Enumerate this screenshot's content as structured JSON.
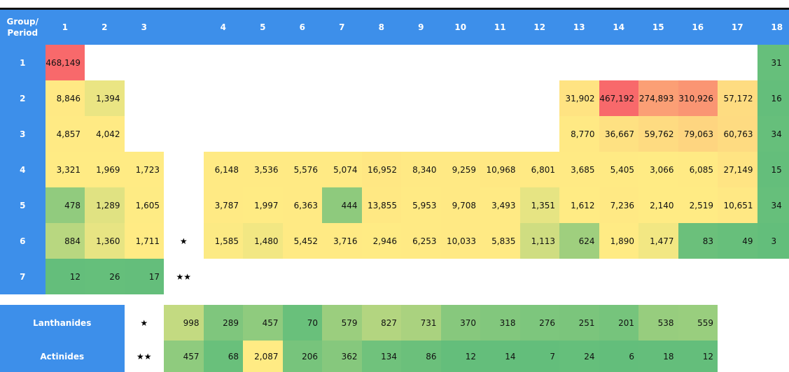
{
  "header": {
    "corner": [
      "Group/",
      "Period"
    ],
    "columns": [
      "1",
      "2",
      "3",
      null,
      "4",
      "5",
      "6",
      "7",
      "8",
      "9",
      "10",
      "11",
      "12",
      "13",
      "14",
      "15",
      "16",
      "17",
      "18"
    ]
  },
  "periods": [
    {
      "label": "1",
      "cells": [
        "468,149",
        null,
        null,
        null,
        null,
        null,
        null,
        null,
        null,
        null,
        null,
        null,
        null,
        null,
        null,
        null,
        null,
        null,
        "31"
      ]
    },
    {
      "label": "2",
      "cells": [
        "8,846",
        "1,394",
        null,
        null,
        null,
        null,
        null,
        null,
        null,
        null,
        null,
        null,
        null,
        "31,902",
        "467,192",
        "274,893",
        "310,926",
        "57,172",
        "16"
      ]
    },
    {
      "label": "3",
      "cells": [
        "4,857",
        "4,042",
        null,
        null,
        null,
        null,
        null,
        null,
        null,
        null,
        null,
        null,
        null,
        "8,770",
        "36,667",
        "59,762",
        "79,063",
        "60,763",
        "34"
      ]
    },
    {
      "label": "4",
      "cells": [
        "3,321",
        "1,969",
        "1,723",
        null,
        "6,148",
        "3,536",
        "5,576",
        "5,074",
        "16,952",
        "8,340",
        "9,259",
        "10,968",
        "6,801",
        "3,685",
        "5,405",
        "3,066",
        "6,085",
        "27,149",
        "15"
      ]
    },
    {
      "label": "5",
      "cells": [
        "478",
        "1,289",
        "1,605",
        null,
        "3,787",
        "1,997",
        "6,363",
        "444",
        "13,855",
        "5,953",
        "9,708",
        "3,493",
        "1,351",
        "1,612",
        "7,236",
        "2,140",
        "2,519",
        "10,651",
        "34"
      ]
    },
    {
      "label": "6",
      "cells": [
        "884",
        "1,360",
        "1,711",
        "★",
        "1,585",
        "1,480",
        "5,452",
        "3,716",
        "2,946",
        "6,253",
        "10,033",
        "5,835",
        "1,113",
        "624",
        "1,890",
        "1,477",
        "83",
        "49",
        "3"
      ]
    },
    {
      "label": "7",
      "cells": [
        "12",
        "26",
        "17",
        "★★",
        null,
        null,
        null,
        null,
        null,
        null,
        null,
        null,
        null,
        null,
        null,
        null,
        null,
        null,
        null
      ]
    }
  ],
  "series": [
    {
      "label": "Lanthanides",
      "marker": "★",
      "values": [
        "998",
        "289",
        "457",
        "70",
        "579",
        "827",
        "731",
        "370",
        "318",
        "276",
        "251",
        "201",
        "538",
        "559"
      ]
    },
    {
      "label": "Actinides",
      "marker": "★★",
      "values": [
        "457",
        "68",
        "2,087",
        "206",
        "362",
        "134",
        "86",
        "12",
        "14",
        "7",
        "24",
        "6",
        "18",
        "12"
      ]
    }
  ],
  "color_scale": [
    "#63be7b",
    "#ffeb84",
    "#f8696b"
  ],
  "header_color": "#3d8fea"
}
